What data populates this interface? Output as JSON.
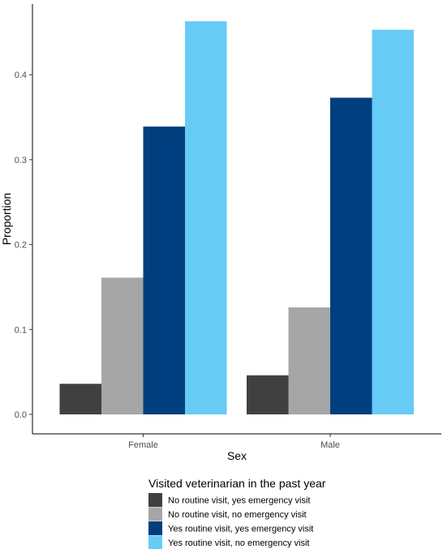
{
  "chart_data": {
    "type": "bar",
    "xlabel": "Sex",
    "ylabel": "Proportion",
    "categories": [
      "Female",
      "Male"
    ],
    "ylim": [
      0,
      0.47
    ],
    "yticks": [
      "0.0",
      "0.1",
      "0.2",
      "0.3",
      "0.4"
    ],
    "grid": false,
    "legend": {
      "title": "Visited veterinarian in the past year",
      "placement": "bottom"
    },
    "series": [
      {
        "name": "No routine visit, yes emergency visit",
        "color": "#404040",
        "values": [
          0.036,
          0.046
        ]
      },
      {
        "name": "No routine visit, no emergency visit",
        "color": "#a6a6a6",
        "values": [
          0.161,
          0.126
        ]
      },
      {
        "name": "Yes routine visit, yes emergency visit",
        "color": "#003f7f",
        "values": [
          0.339,
          0.373
        ]
      },
      {
        "name": "Yes routine visit, no emergency visit",
        "color": "#66ccf5",
        "values": [
          0.463,
          0.453
        ]
      }
    ]
  }
}
